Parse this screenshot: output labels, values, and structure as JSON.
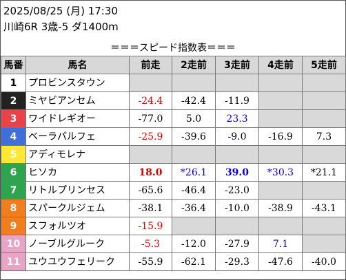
{
  "header": {
    "datetime": "2025/08/25 (月) 17:30",
    "race_info": "川崎6R 3歳-5 ダ1400m"
  },
  "table_title": "＝＝＝スピード指数表＝＝＝",
  "columns": [
    "馬番",
    "馬名",
    "前走",
    "2走前",
    "3走前",
    "4走前",
    "5走前"
  ],
  "colors": {
    "num_bg": [
      "#ffffff",
      "#222222",
      "#e8424a",
      "#3f6fd8",
      "#ffe833",
      "#2ea44f",
      "#f07e1f",
      "#e8a4c5"
    ],
    "red": "#e00000",
    "blue": "#0000e0",
    "empty_cell": "#d9d9d9",
    "header_bg": "#d8d8d8"
  },
  "rows": [
    {
      "num": "1",
      "name": "プロビンスタウン",
      "cells": [
        {
          "text": "",
          "color": "black",
          "bold": false,
          "empty": true
        },
        {
          "text": "",
          "color": "black",
          "bold": false,
          "empty": true
        },
        {
          "text": "",
          "color": "black",
          "bold": false,
          "empty": true
        },
        {
          "text": "",
          "color": "black",
          "bold": false,
          "empty": true
        },
        {
          "text": "",
          "color": "black",
          "bold": false,
          "empty": true
        }
      ]
    },
    {
      "num": "2",
      "name": "ミヤビアンセム",
      "cells": [
        {
          "text": "-24.4",
          "color": "red",
          "bold": false,
          "empty": false
        },
        {
          "text": "-42.4",
          "color": "black",
          "bold": false,
          "empty": false
        },
        {
          "text": "-11.9",
          "color": "black",
          "bold": false,
          "empty": false
        },
        {
          "text": "",
          "color": "black",
          "bold": false,
          "empty": true
        },
        {
          "text": "",
          "color": "black",
          "bold": false,
          "empty": true
        }
      ]
    },
    {
      "num": "3",
      "name": "ワイドレギオー",
      "cells": [
        {
          "text": "-77.0",
          "color": "black",
          "bold": false,
          "empty": false
        },
        {
          "text": "5.0",
          "color": "black",
          "bold": false,
          "empty": false
        },
        {
          "text": "23.3",
          "color": "blue",
          "bold": false,
          "empty": false
        },
        {
          "text": "",
          "color": "black",
          "bold": false,
          "empty": true
        },
        {
          "text": "",
          "color": "black",
          "bold": false,
          "empty": true
        }
      ]
    },
    {
      "num": "4",
      "name": "ベーラパルフェ",
      "cells": [
        {
          "text": "-25.9",
          "color": "red",
          "bold": false,
          "empty": false
        },
        {
          "text": "-39.6",
          "color": "black",
          "bold": false,
          "empty": false
        },
        {
          "text": "-9.0",
          "color": "black",
          "bold": false,
          "empty": false
        },
        {
          "text": "-16.9",
          "color": "black",
          "bold": false,
          "empty": false
        },
        {
          "text": "7.3",
          "color": "black",
          "bold": false,
          "empty": false
        }
      ]
    },
    {
      "num": "5",
      "name": "アディモレナ",
      "cells": [
        {
          "text": "",
          "color": "black",
          "bold": false,
          "empty": true
        },
        {
          "text": "",
          "color": "black",
          "bold": false,
          "empty": true
        },
        {
          "text": "",
          "color": "black",
          "bold": false,
          "empty": true
        },
        {
          "text": "",
          "color": "black",
          "bold": false,
          "empty": true
        },
        {
          "text": "",
          "color": "black",
          "bold": false,
          "empty": true
        }
      ]
    },
    {
      "num": "6",
      "name": "ヒソカ",
      "cells": [
        {
          "text": "18.0",
          "color": "red",
          "bold": true,
          "empty": false
        },
        {
          "text": "*26.1",
          "color": "blue",
          "bold": false,
          "empty": false
        },
        {
          "text": "39.0",
          "color": "blue",
          "bold": true,
          "empty": false
        },
        {
          "text": "*30.3",
          "color": "blue",
          "bold": false,
          "empty": false
        },
        {
          "text": "*21.1",
          "color": "black",
          "bold": false,
          "empty": false
        }
      ]
    },
    {
      "num": "7",
      "name": "リトルプリンセス",
      "cells": [
        {
          "text": "-65.6",
          "color": "black",
          "bold": false,
          "empty": false
        },
        {
          "text": "-46.4",
          "color": "black",
          "bold": false,
          "empty": false
        },
        {
          "text": "-23.0",
          "color": "black",
          "bold": false,
          "empty": false
        },
        {
          "text": "",
          "color": "black",
          "bold": false,
          "empty": true
        },
        {
          "text": "",
          "color": "black",
          "bold": false,
          "empty": true
        }
      ]
    },
    {
      "num": "8",
      "name": "スパークルジェム",
      "cells": [
        {
          "text": "-38.1",
          "color": "black",
          "bold": false,
          "empty": false
        },
        {
          "text": "-36.4",
          "color": "black",
          "bold": false,
          "empty": false
        },
        {
          "text": "-10.0",
          "color": "black",
          "bold": false,
          "empty": false
        },
        {
          "text": "-38.9",
          "color": "black",
          "bold": false,
          "empty": false
        },
        {
          "text": "-43.1",
          "color": "black",
          "bold": false,
          "empty": false
        }
      ]
    },
    {
      "num": "9",
      "name": "スフォルツオ",
      "cells": [
        {
          "text": "-15.9",
          "color": "red",
          "bold": false,
          "empty": false
        },
        {
          "text": "",
          "color": "black",
          "bold": false,
          "empty": true
        },
        {
          "text": "",
          "color": "black",
          "bold": false,
          "empty": true
        },
        {
          "text": "",
          "color": "black",
          "bold": false,
          "empty": true
        },
        {
          "text": "",
          "color": "black",
          "bold": false,
          "empty": true
        }
      ]
    },
    {
      "num": "10",
      "name": "ノーブルグルーク",
      "cells": [
        {
          "text": "-5.3",
          "color": "red",
          "bold": false,
          "empty": false
        },
        {
          "text": "-12.0",
          "color": "black",
          "bold": false,
          "empty": false
        },
        {
          "text": "-27.9",
          "color": "black",
          "bold": false,
          "empty": false
        },
        {
          "text": "7.1",
          "color": "blue",
          "bold": false,
          "empty": false
        },
        {
          "text": "",
          "color": "black",
          "bold": false,
          "empty": true
        }
      ]
    },
    {
      "num": "11",
      "name": "ユウユウフェリーク",
      "cells": [
        {
          "text": "-55.9",
          "color": "black",
          "bold": false,
          "empty": false
        },
        {
          "text": "-62.1",
          "color": "black",
          "bold": false,
          "empty": false
        },
        {
          "text": "-29.3",
          "color": "black",
          "bold": false,
          "empty": false
        },
        {
          "text": "-47.6",
          "color": "black",
          "bold": false,
          "empty": false
        },
        {
          "text": "-40.0",
          "color": "black",
          "bold": false,
          "empty": false
        }
      ]
    }
  ]
}
